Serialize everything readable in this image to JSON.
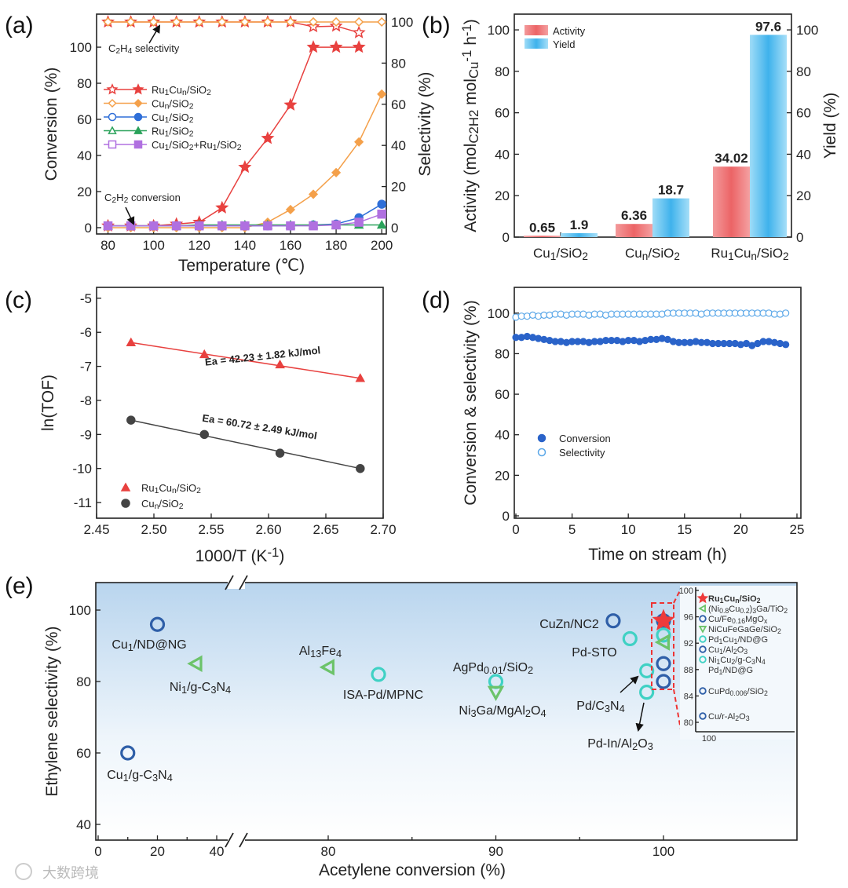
{
  "panel_labels": [
    "(a)",
    "(b)",
    "(c)",
    "(d)",
    "(e)"
  ],
  "watermark": "大数跨境",
  "chart_data": [
    {
      "id": "a",
      "type": "line",
      "xlabel": "Temperature (℃)",
      "ylabel": "Conversion (%)",
      "y2label": "Selectivity (%)",
      "xlim": [
        75,
        202
      ],
      "ylim": [
        -3.5,
        118.3
      ],
      "y2lim": [
        -3.05,
        103.8
      ],
      "xticks": [
        80,
        100,
        120,
        140,
        160,
        180,
        200
      ],
      "yticks": [
        0,
        20,
        40,
        60,
        80,
        100
      ],
      "y2ticks": [
        0,
        20,
        40,
        60,
        80,
        100
      ],
      "annotations": [
        "C_{2}H_{4} selectivity",
        "C_{2}H_{2} conversion"
      ],
      "legend_position": "center-left",
      "series": [
        {
          "name": "Ru_{1}Cu_{n}/SiO_{2}",
          "marker": "star",
          "color": "#e8413f",
          "x": [
            80,
            90,
            100,
            110,
            120,
            130,
            140,
            150,
            160,
            170,
            180,
            190
          ],
          "conversion": [
            1,
            1,
            1,
            2,
            3,
            11,
            33.5,
            49.5,
            68,
            100,
            100,
            100
          ],
          "selectivity": [
            100,
            100,
            100,
            100,
            100,
            100,
            100,
            100,
            100,
            97.7,
            98,
            94.8
          ]
        },
        {
          "name": "Cu_{n}/SiO_{2}",
          "marker": "diamond",
          "color": "#f4a04a",
          "x": [
            80,
            90,
            100,
            110,
            120,
            130,
            140,
            150,
            160,
            170,
            180,
            190,
            200
          ],
          "conversion": [
            0,
            0,
            0,
            0,
            0,
            0,
            0,
            3,
            10,
            18.5,
            30.5,
            47.5,
            74
          ],
          "selectivity": [
            100,
            100,
            100,
            100,
            100,
            100,
            100,
            100,
            100,
            100,
            100,
            100,
            100
          ]
        },
        {
          "name": "Cu_{1}/SiO_{2}",
          "marker": "circle",
          "color": "#2f6fd8",
          "x": [
            80,
            90,
            100,
            110,
            120,
            130,
            140,
            150,
            160,
            170,
            180,
            190,
            200
          ],
          "conversion": [
            1,
            1,
            1,
            1,
            1,
            1,
            1,
            1,
            1,
            1.5,
            2,
            5.5,
            13
          ],
          "selectivity": []
        },
        {
          "name": "Ru_{1}/SiO_{2}",
          "marker": "triangle",
          "color": "#2aa25a",
          "x": [
            80,
            90,
            100,
            110,
            120,
            130,
            140,
            150,
            160,
            170,
            180,
            190,
            200
          ],
          "conversion": [
            1,
            1,
            1,
            1,
            1.5,
            1.5,
            1.5,
            1.5,
            1.5,
            1.5,
            1.5,
            1.5,
            1.5
          ],
          "selectivity": []
        },
        {
          "name": "Cu_{1}/SiO_{2}+Ru_{1}/SiO_{2}",
          "marker": "square",
          "color": "#b070e0",
          "x": [
            80,
            90,
            100,
            110,
            120,
            130,
            140,
            150,
            160,
            170,
            180,
            190,
            200
          ],
          "conversion": [
            1,
            1,
            1,
            1,
            1,
            1,
            1,
            1,
            1,
            1,
            1.5,
            3,
            7.5
          ],
          "selectivity": []
        }
      ]
    },
    {
      "id": "b",
      "type": "bar",
      "ylabel": "Activity (mol_{C2H2} mol_{Cu}^{-1} h^{-1})",
      "y2label": "Yield (%)",
      "ylim": [
        0,
        107.6
      ],
      "y2lim": [
        0,
        107.6
      ],
      "yticks": [
        0,
        20,
        40,
        60,
        80,
        100
      ],
      "y2ticks": [
        0,
        20,
        40,
        60,
        80,
        100
      ],
      "categories": [
        "Cu_{1}/SiO_{2}",
        "Cu_{n}/SiO_{2}",
        "Ru_{1}Cu_{n}/SiO_{2}"
      ],
      "legend_position": "top-left",
      "series": [
        {
          "name": "Activity",
          "color": "#ee6f70",
          "values": [
            0.65,
            6.36,
            34.02
          ],
          "labels": [
            "0.65",
            "6.36",
            "34.02"
          ]
        },
        {
          "name": "Yield",
          "color": "#55bdf0",
          "values": [
            1.9,
            18.7,
            97.6
          ],
          "labels": [
            "1.9",
            "18.7",
            "97.6"
          ]
        }
      ]
    },
    {
      "id": "c",
      "type": "scatter",
      "xlabel": "1000/T (K^{-1})",
      "ylabel": "ln(TOF)",
      "xlim": [
        2.45,
        2.7
      ],
      "ylim": [
        -11.46,
        -4.68
      ],
      "xticks": [
        2.45,
        2.5,
        2.55,
        2.6,
        2.65,
        2.7
      ],
      "yticks": [
        -11,
        -10,
        -9,
        -8,
        -7,
        -6,
        -5
      ],
      "legend_position": "bottom-left",
      "series": [
        {
          "name": "Ru_{1}Cu_{n}/SiO_{2}",
          "marker": "triangle",
          "color": "#e8413f",
          "x": [
            2.48,
            2.544,
            2.61,
            2.68
          ],
          "y": [
            -6.3,
            -6.65,
            -6.95,
            -7.35
          ],
          "fit_label": "Ea = 42.23 ± 1.82 kJ/mol"
        },
        {
          "name": "Cu_{n}/SiO_{2}",
          "marker": "circle",
          "color": "#444444",
          "x": [
            2.48,
            2.544,
            2.61,
            2.68
          ],
          "y": [
            -8.58,
            -9.0,
            -9.55,
            -10.0
          ],
          "fit_label": "Ea = 60.72 ± 2.49 kJ/mol"
        }
      ]
    },
    {
      "id": "d",
      "type": "scatter",
      "xlabel": "Time on stream (h)",
      "ylabel": "Conversion & selectivity (%)",
      "xlim": [
        -0.14,
        25.35
      ],
      "ylim": [
        -1.16,
        112.7
      ],
      "xticks": [
        0,
        5,
        10,
        15,
        20,
        25
      ],
      "yticks": [
        0,
        20,
        40,
        60,
        80,
        100
      ],
      "legend_position": "center-left",
      "x": [
        0,
        0.5,
        1,
        1.5,
        2,
        2.5,
        3,
        3.5,
        4,
        4.5,
        5,
        5.5,
        6,
        6.5,
        7,
        7.5,
        8,
        8.5,
        9,
        9.5,
        10,
        10.5,
        11,
        11.5,
        12,
        12.5,
        13,
        13.5,
        14,
        14.5,
        15,
        15.5,
        16,
        16.5,
        17,
        17.5,
        18,
        18.5,
        19,
        19.5,
        20,
        20.5,
        21,
        21.5,
        22,
        22.5,
        23,
        23.5,
        24
      ],
      "series": [
        {
          "name": "Conversion",
          "color": "#2a63c9",
          "filled": true,
          "y": [
            88,
            88,
            88.5,
            88,
            87.5,
            87,
            86.5,
            86,
            86,
            85.5,
            86,
            86,
            86,
            85.5,
            86,
            86,
            86.5,
            86.5,
            86.5,
            86,
            86.5,
            86.5,
            86,
            86.5,
            87,
            87,
            87.5,
            87,
            86,
            85.5,
            85.5,
            85.5,
            86,
            85.5,
            85.5,
            85,
            85,
            85,
            85,
            85,
            84.5,
            85,
            84,
            85,
            86,
            86,
            85.5,
            85,
            84.5
          ]
        },
        {
          "name": "Selectivity",
          "color": "#5aa7e8",
          "filled": false,
          "y": [
            98,
            98.5,
            98.5,
            99,
            98.5,
            99,
            99,
            99.5,
            99.5,
            99,
            99.5,
            99.5,
            99.5,
            99,
            99.5,
            99.5,
            99,
            99.5,
            99.5,
            99.5,
            99.5,
            99.5,
            99.5,
            99.5,
            99.5,
            99.5,
            99.5,
            100,
            100,
            100,
            100,
            100,
            100,
            99.5,
            100,
            100,
            100,
            100,
            100,
            100,
            100,
            100,
            100,
            100,
            100,
            100,
            99.5,
            99.5,
            100
          ]
        }
      ]
    },
    {
      "id": "e",
      "type": "scatter",
      "xlabel": "Acetylene conversion (%)",
      "ylabel": "Ethylene selectivity (%)",
      "xlim": [
        -0.8,
        107.9
      ],
      "ylim": [
        35.6,
        107.7
      ],
      "x_break": [
        45,
        75
      ],
      "xticks": [
        0,
        20,
        40,
        80,
        90,
        100
      ],
      "yticks": [
        40,
        60,
        80,
        100
      ],
      "points": [
        {
          "label": "Cu_{1}/ND@NG",
          "x": 20,
          "y": 96,
          "marker": "circle",
          "color": "#2f5fa8"
        },
        {
          "label": "Ni_{1}/g-C_{3}N_{4}",
          "x": 33,
          "y": 85,
          "marker": "triangle-left",
          "color": "#6cc36a"
        },
        {
          "label": "Cu_{1}/g-C_{3}N_{4}",
          "x": 10,
          "y": 60,
          "marker": "circle",
          "color": "#2f5fa8"
        },
        {
          "label": "Al_{13}Fe_{4}",
          "x": 80,
          "y": 84,
          "marker": "triangle-left",
          "color": "#6cc36a"
        },
        {
          "label": "ISA-Pd/MPNC",
          "x": 83,
          "y": 82,
          "marker": "circle",
          "color": "#3fd1c4"
        },
        {
          "label": "AgPd_{0.01}/SiO_{2}",
          "x": 90,
          "y": 80,
          "marker": "circle",
          "color": "#3fd1c4"
        },
        {
          "label": "Ni_{3}Ga/MgAl_{2}O_{4}",
          "x": 90,
          "y": 77,
          "marker": "triangle-down",
          "color": "#6cc36a"
        },
        {
          "label": "CuZn/NC2",
          "x": 97,
          "y": 97,
          "marker": "circle",
          "color": "#2f5fa8"
        },
        {
          "label": "Pd-STO",
          "x": 98,
          "y": 92,
          "marker": "circle",
          "color": "#3fd1c4"
        },
        {
          "label": "Pd/C_{3}N_{4}",
          "x": 99,
          "y": 83,
          "marker": "circle",
          "color": "#3fd1c4"
        },
        {
          "label": "Pd-In/Al_{2}O_{3}",
          "x": 99,
          "y": 77,
          "marker": "circle",
          "color": "#3fd1c4"
        }
      ],
      "cluster_at_100": [
        {
          "x": 100,
          "y": 97,
          "marker": "circle",
          "color": "#2f5fa8"
        },
        {
          "x": 100,
          "y": 93,
          "marker": "circle",
          "color": "#3fd1c4"
        },
        {
          "x": 100,
          "y": 91,
          "marker": "triangle-left",
          "color": "#6cc36a"
        },
        {
          "x": 100,
          "y": 85,
          "marker": "circle",
          "color": "#2f5fa8"
        },
        {
          "x": 100,
          "y": 80,
          "marker": "circle",
          "color": "#2f5fa8"
        },
        {
          "x": 100,
          "y": 97,
          "marker": "star",
          "color": "#ee3b3b"
        }
      ],
      "inset": {
        "ylim": [
          79,
          100.5
        ],
        "yticks": [
          80,
          84,
          88,
          92,
          96,
          100
        ],
        "xticks": [
          100
        ],
        "legend": [
          {
            "label": "Ru_{1}Cu_{n}/SiO_{2}",
            "y": 96.9,
            "marker": "star",
            "color": "#ee3b3b"
          },
          {
            "label": "(Ni_{0.8}Cu_{0.2})_{3}Ga/TiO_{2}",
            "y": 95.8,
            "marker": "triangle-left",
            "color": "#6cc36a"
          },
          {
            "label": "Cu/Fe_{0.16}MgO_{x}",
            "y": 94.8,
            "marker": "circle",
            "color": "#2f5fa8"
          },
          {
            "label": "NiCuFeGaGe/SiO_{2}",
            "y": 93.3,
            "marker": "triangle-down",
            "color": "#6cc36a"
          },
          {
            "label": "Pd_{1}Cu_{1}/ND@G",
            "y": 92.2,
            "marker": "circle",
            "color": "#3fd1c4"
          },
          {
            "label": "Cu_{1}/Al_{2}O_{3}",
            "y": 91.1,
            "marker": "circle",
            "color": "#2f5fa8"
          },
          {
            "label": "Ni_{1}Cu_{2}/g-C_{3}N_{4}",
            "y": 90.1,
            "marker": "circle",
            "color": "#3fd1c4"
          },
          {
            "label": "Pd_{1}/ND@G",
            "y": 89,
            "marker": "none",
            "color": "#3fd1c4"
          },
          {
            "label": "CuPd_{0.006}/SiO_{2}",
            "y": 85.8,
            "marker": "circle",
            "color": "#2f5fa8"
          },
          {
            "label": "Cu/r-Al_{2}O_{3}",
            "y": 80,
            "marker": "circle",
            "color": "#2f5fa8"
          }
        ]
      }
    }
  ]
}
